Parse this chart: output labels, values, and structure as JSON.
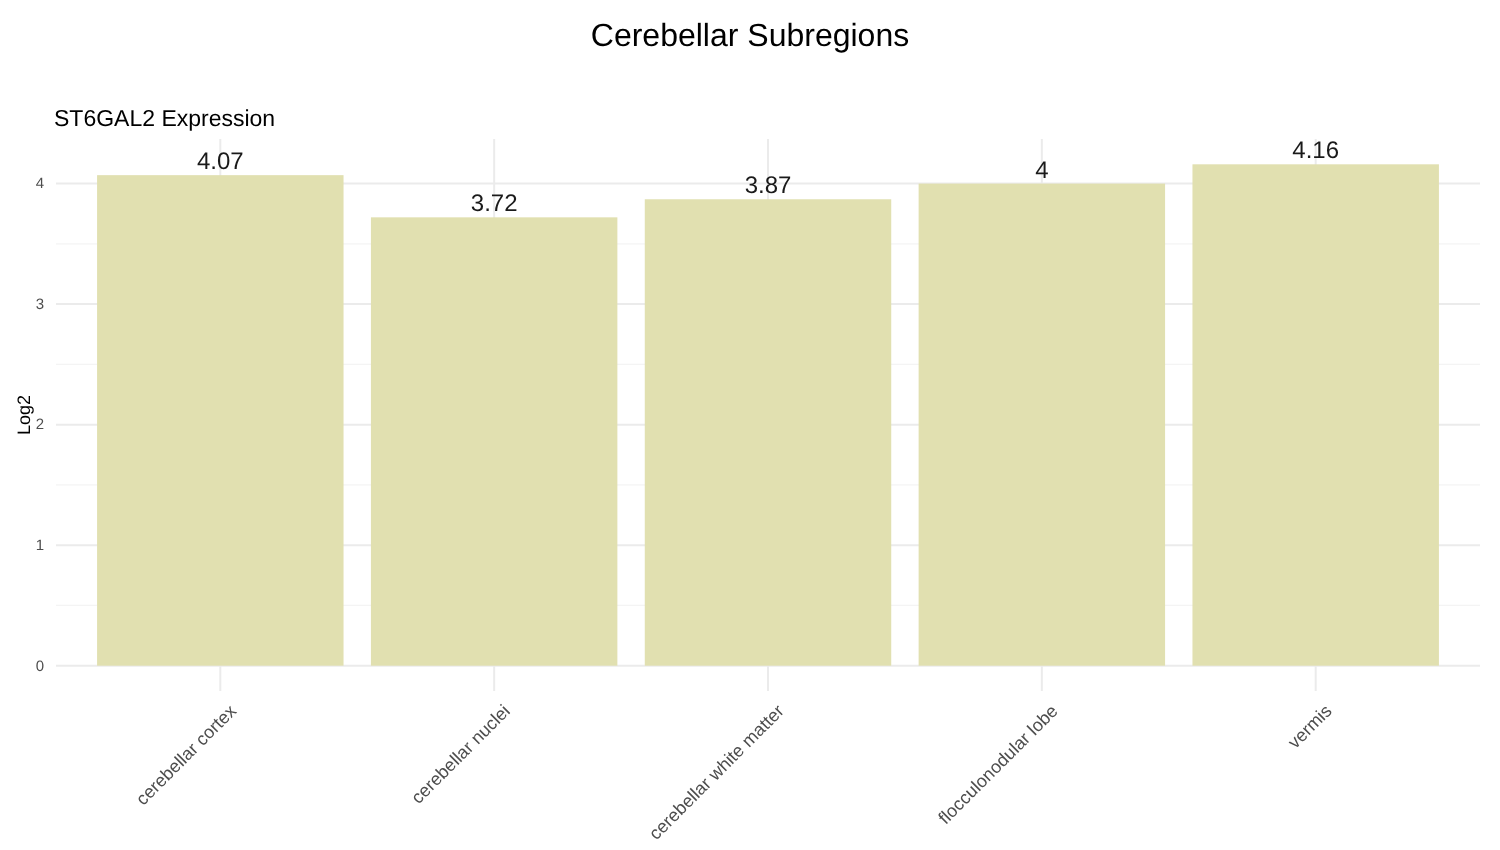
{
  "chart_data": {
    "type": "bar",
    "title": "Cerebellar Subregions",
    "subtitle": "ST6GAL2 Expression",
    "ylabel": "Log2",
    "categories": [
      "cerebellar cortex",
      "cerebellar nuclei",
      "cerebellar white matter",
      "flocculonodular lobe",
      "vermis"
    ],
    "values": [
      4.07,
      3.72,
      3.87,
      4,
      4.16
    ],
    "color": "#e1e0b0",
    "data_labels": true,
    "ylim": [
      -0.21,
      4.37
    ],
    "yticks": [
      0,
      {
        "value": 0.5,
        "label": null
      },
      1,
      {
        "value": 1.5,
        "label": null
      },
      2,
      {
        "value": 2.5,
        "label": null
      },
      3,
      {
        "value": 3.5,
        "label": null
      },
      4
    ],
    "grid": true
  }
}
